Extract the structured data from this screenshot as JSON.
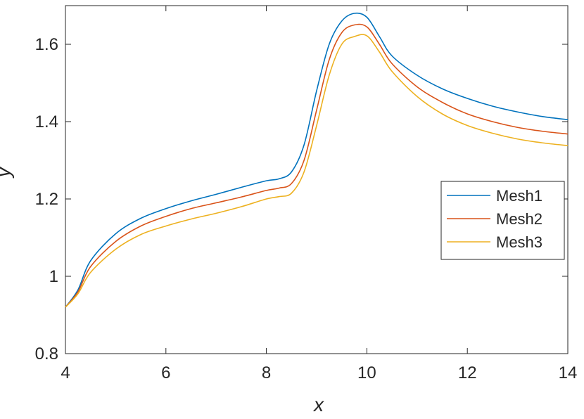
{
  "chart_data": {
    "type": "line",
    "title": "",
    "xlabel": "x",
    "ylabel": "y",
    "xlim": [
      4,
      14
    ],
    "ylim": [
      0.8,
      1.7
    ],
    "xticks": [
      4,
      6,
      8,
      10,
      12,
      14
    ],
    "yticks": [
      0.8,
      1,
      1.2,
      1.4,
      1.6
    ],
    "xtick_labels": [
      "4",
      "6",
      "8",
      "10",
      "12",
      "14"
    ],
    "ytick_labels": [
      "0.8",
      "1",
      "1.2",
      "1.4",
      "1.6"
    ],
    "grid": false,
    "legend_position": "right",
    "x": [
      4.0,
      4.25,
      4.5,
      5.0,
      5.5,
      6.0,
      6.5,
      7.0,
      7.5,
      8.0,
      8.25,
      8.5,
      8.75,
      9.0,
      9.25,
      9.5,
      9.75,
      10.0,
      10.25,
      10.5,
      11.0,
      11.5,
      12.0,
      12.5,
      13.0,
      13.5,
      14.0
    ],
    "series": [
      {
        "name": "Mesh1",
        "color": "#0072BD",
        "values": [
          0.92,
          0.965,
          1.04,
          1.11,
          1.15,
          1.175,
          1.195,
          1.212,
          1.23,
          1.247,
          1.252,
          1.27,
          1.34,
          1.48,
          1.6,
          1.66,
          1.68,
          1.67,
          1.62,
          1.57,
          1.52,
          1.485,
          1.46,
          1.44,
          1.425,
          1.413,
          1.405
        ]
      },
      {
        "name": "Mesh2",
        "color": "#D95319",
        "values": [
          0.92,
          0.96,
          1.025,
          1.09,
          1.13,
          1.155,
          1.175,
          1.19,
          1.205,
          1.222,
          1.228,
          1.24,
          1.3,
          1.43,
          1.56,
          1.63,
          1.65,
          1.645,
          1.6,
          1.55,
          1.49,
          1.45,
          1.42,
          1.4,
          1.385,
          1.375,
          1.368
        ]
      },
      {
        "name": "Mesh3",
        "color": "#EDB120",
        "values": [
          0.92,
          0.955,
          1.01,
          1.07,
          1.108,
          1.13,
          1.148,
          1.163,
          1.18,
          1.2,
          1.206,
          1.215,
          1.27,
          1.39,
          1.52,
          1.6,
          1.62,
          1.622,
          1.58,
          1.53,
          1.465,
          1.42,
          1.39,
          1.37,
          1.355,
          1.345,
          1.338
        ]
      }
    ]
  }
}
